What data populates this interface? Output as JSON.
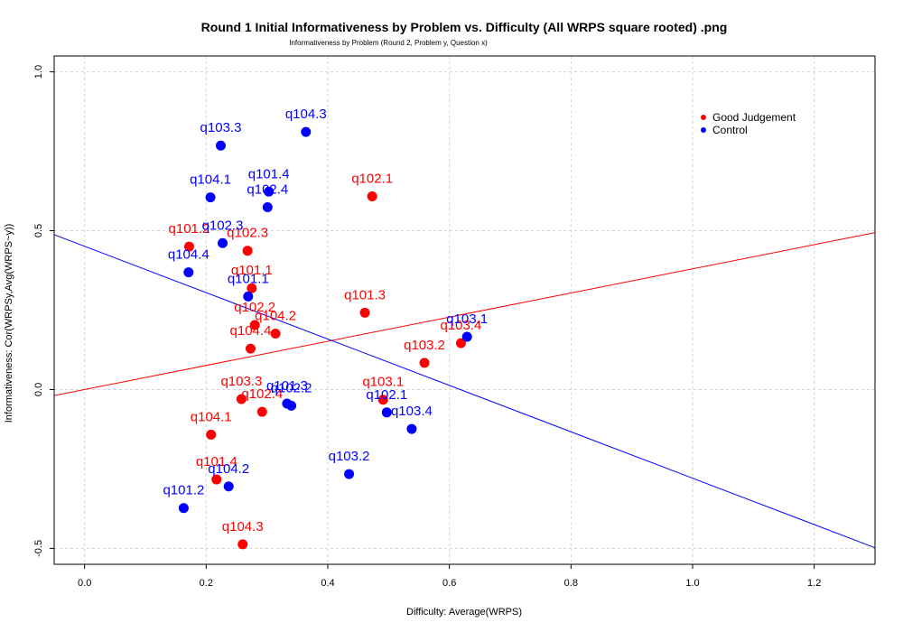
{
  "chart_data": {
    "type": "scatter",
    "title": "Round 1 Initial Informativeness by Problem vs. Difficulty (All WRPS square rooted) .png",
    "subtitle": "Informativeness by Problem (Round 2, Problem y, Question x)",
    "xlabel": "Difficulty: Average(WRPS)",
    "ylabel": "Informativeness: Cor(WRPSy,Avg(WRPS~y))",
    "xlim": [
      -0.05,
      1.3
    ],
    "ylim": [
      -0.55,
      1.05
    ],
    "x_ticks": [
      "0.0",
      "0.2",
      "0.4",
      "0.6",
      "0.8",
      "1.0",
      "1.2"
    ],
    "x_tick_values": [
      0,
      0.2,
      0.4,
      0.6,
      0.8,
      1.0,
      1.2
    ],
    "y_ticks": [
      "-0.5",
      "0.0",
      "0.5",
      "1.0"
    ],
    "y_tick_values": [
      -0.5,
      0,
      0.5,
      1.0
    ],
    "grid": true,
    "legend_position": "top-right",
    "series": [
      {
        "name": "Good Judgement",
        "color": "#ff0000",
        "points": [
          {
            "label": "q102.1",
            "x": 0.473,
            "y": 0.608
          },
          {
            "label": "q101.2",
            "x": 0.172,
            "y": 0.45
          },
          {
            "label": "q102.3",
            "x": 0.268,
            "y": 0.437
          },
          {
            "label": "q101.1",
            "x": 0.275,
            "y": 0.319
          },
          {
            "label": "q101.3",
            "x": 0.461,
            "y": 0.242
          },
          {
            "label": "q102.2",
            "x": 0.28,
            "y": 0.203
          },
          {
            "label": "q104.2",
            "x": 0.314,
            "y": 0.176
          },
          {
            "label": "q104.4",
            "x": 0.273,
            "y": 0.129
          },
          {
            "label": "q103.4",
            "x": 0.619,
            "y": 0.146
          },
          {
            "label": "q103.2",
            "x": 0.559,
            "y": 0.084
          },
          {
            "label": "q103.3",
            "x": 0.258,
            "y": -0.03
          },
          {
            "label": "q102.4",
            "x": 0.292,
            "y": -0.07
          },
          {
            "label": "q103.1",
            "x": 0.491,
            "y": -0.032
          },
          {
            "label": "q104.1",
            "x": 0.208,
            "y": -0.142
          },
          {
            "label": "q101.4",
            "x": 0.217,
            "y": -0.283
          },
          {
            "label": "q104.3",
            "x": 0.26,
            "y": -0.487
          }
        ]
      },
      {
        "name": "Control",
        "color": "#0000ff",
        "points": [
          {
            "label": "q104.3",
            "x": 0.364,
            "y": 0.811
          },
          {
            "label": "q103.3",
            "x": 0.224,
            "y": 0.768
          },
          {
            "label": "q101.4",
            "x": 0.303,
            "y": 0.623
          },
          {
            "label": "q104.1",
            "x": 0.207,
            "y": 0.605
          },
          {
            "label": "q102.4",
            "x": 0.301,
            "y": 0.574
          },
          {
            "label": "q102.3",
            "x": 0.227,
            "y": 0.461
          },
          {
            "label": "q104.4",
            "x": 0.171,
            "y": 0.369
          },
          {
            "label": "q101.1",
            "x": 0.269,
            "y": 0.293
          },
          {
            "label": "q103.1",
            "x": 0.629,
            "y": 0.166
          },
          {
            "label": "q101.3",
            "x": 0.333,
            "y": -0.044
          },
          {
            "label": "q102.2",
            "x": 0.34,
            "y": -0.051
          },
          {
            "label": "q102.1",
            "x": 0.497,
            "y": -0.072
          },
          {
            "label": "q103.4",
            "x": 0.538,
            "y": -0.124
          },
          {
            "label": "q103.2",
            "x": 0.435,
            "y": -0.266
          },
          {
            "label": "q104.2",
            "x": 0.237,
            "y": -0.305
          },
          {
            "label": "q101.2",
            "x": 0.163,
            "y": -0.373
          }
        ]
      }
    ],
    "fit_lines": [
      {
        "color": "#ff0000",
        "intercept": 0.0,
        "slope": 0.38
      },
      {
        "color": "#0000ff",
        "intercept": 0.451,
        "slope": -0.73
      }
    ],
    "label_offsets_y": {
      "Good Judgement": [
        -1,
        -1,
        -1,
        -1,
        -1,
        -1,
        -1,
        -1,
        -1,
        -1,
        -1,
        -1,
        -1,
        -1,
        -1,
        -1
      ],
      "Control": [
        -1,
        -1,
        -1,
        -1,
        -1,
        -1,
        -1,
        -1,
        -1,
        -1,
        -1,
        -1,
        -1,
        -1,
        -1,
        -1
      ]
    }
  }
}
